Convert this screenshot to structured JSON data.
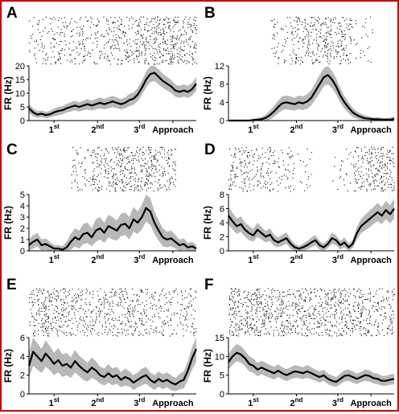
{
  "colors": {
    "frame": "#cc0000",
    "line": "#000000",
    "band": "#b8b8b8",
    "raster": "#000000"
  },
  "chart_data": [
    {
      "type": "line",
      "panel": "A",
      "ylabel": "FR (Hz)",
      "ylim": [
        0,
        20
      ],
      "yticks": [
        0,
        5,
        10,
        15,
        20
      ],
      "xtick_labels": [
        {
          "base": "1",
          "sup": "st"
        },
        {
          "base": "2",
          "sup": "nd"
        },
        {
          "base": "3",
          "sup": "rd"
        },
        {
          "base": "Approach",
          "sup": ""
        }
      ],
      "raster_density": [
        0.35,
        0.45,
        0.55,
        0.55,
        0.6,
        0.8,
        1.0,
        0.85
      ],
      "x": [
        0,
        0.025,
        0.05,
        0.075,
        0.1,
        0.125,
        0.15,
        0.175,
        0.2,
        0.225,
        0.25,
        0.275,
        0.3,
        0.325,
        0.35,
        0.375,
        0.4,
        0.425,
        0.45,
        0.475,
        0.5,
        0.525,
        0.55,
        0.575,
        0.6,
        0.625,
        0.65,
        0.675,
        0.7,
        0.725,
        0.75,
        0.775,
        0.8,
        0.825,
        0.85,
        0.875,
        0.9,
        0.925,
        0.95,
        0.975,
        1
      ],
      "series": [
        {
          "values": [
            4.5,
            3.0,
            2.2,
            2.5,
            2.0,
            2.3,
            3.0,
            3.5,
            3.8,
            4.5,
            5.0,
            5.5,
            5.0,
            5.5,
            6.0,
            5.5,
            6.0,
            6.5,
            6.0,
            6.5,
            7.0,
            6.5,
            6.0,
            6.5,
            7.5,
            8.0,
            9.5,
            12.0,
            15.0,
            17.0,
            17.5,
            16.0,
            14.5,
            13.5,
            12.5,
            11.0,
            10.5,
            11.0,
            10.5,
            11.5,
            13.5
          ],
          "band": [
            1.5,
            1.5,
            1.2,
            1.2,
            1.2,
            1.2,
            1.4,
            1.5,
            1.5,
            1.6,
            1.7,
            1.8,
            1.7,
            1.8,
            1.9,
            1.8,
            1.9,
            2.0,
            1.9,
            2.0,
            2.1,
            2.0,
            1.9,
            2.0,
            2.2,
            2.2,
            2.4,
            2.6,
            2.9,
            3.0,
            3.0,
            2.8,
            2.6,
            2.5,
            2.4,
            2.2,
            2.2,
            2.2,
            2.2,
            2.3,
            2.5
          ]
        }
      ]
    },
    {
      "type": "line",
      "panel": "B",
      "ylabel": "FR (Hz)",
      "ylim": [
        0,
        12
      ],
      "yticks": [
        0,
        4,
        8,
        12
      ],
      "xtick_labels": [
        {
          "base": "1",
          "sup": "st"
        },
        {
          "base": "2",
          "sup": "nd"
        },
        {
          "base": "3",
          "sup": "rd"
        },
        {
          "base": "Approach",
          "sup": ""
        }
      ],
      "raster_density": [
        0.05,
        0.08,
        0.35,
        0.7,
        0.9,
        0.7,
        0.15,
        0.05
      ],
      "x": [
        0,
        0.025,
        0.05,
        0.075,
        0.1,
        0.125,
        0.15,
        0.175,
        0.2,
        0.225,
        0.25,
        0.275,
        0.3,
        0.325,
        0.35,
        0.375,
        0.4,
        0.425,
        0.45,
        0.475,
        0.5,
        0.525,
        0.55,
        0.575,
        0.6,
        0.625,
        0.65,
        0.675,
        0.7,
        0.725,
        0.75,
        0.775,
        0.8,
        0.825,
        0.85,
        0.875,
        0.9,
        0.925,
        0.95,
        0.975,
        1
      ],
      "series": [
        {
          "values": [
            0,
            0,
            0,
            0,
            0,
            0,
            0.1,
            0.2,
            0.3,
            0.6,
            1.2,
            2.0,
            3.0,
            3.8,
            4.0,
            3.8,
            3.6,
            4.0,
            3.8,
            4.2,
            5.0,
            6.5,
            8.0,
            9.5,
            10.0,
            9.0,
            7.5,
            5.5,
            4.0,
            2.8,
            1.8,
            1.2,
            0.8,
            0.5,
            0.4,
            0.3,
            0.3,
            0.2,
            0.2,
            0.2,
            0.4
          ],
          "band": [
            0.2,
            0.2,
            0.2,
            0.2,
            0.2,
            0.2,
            0.3,
            0.4,
            0.5,
            0.7,
            1.0,
            1.2,
            1.4,
            1.5,
            1.5,
            1.5,
            1.4,
            1.5,
            1.5,
            1.6,
            1.7,
            1.8,
            2.0,
            2.0,
            2.0,
            1.9,
            1.8,
            1.6,
            1.4,
            1.2,
            1.0,
            0.8,
            0.7,
            0.6,
            0.5,
            0.4,
            0.4,
            0.4,
            0.4,
            0.4,
            0.5
          ]
        }
      ]
    },
    {
      "type": "line",
      "panel": "C",
      "ylabel": "FR (Hz)",
      "ylim": [
        0,
        5
      ],
      "yticks": [
        0,
        1,
        2,
        3,
        4,
        5
      ],
      "xtick_labels": [
        {
          "base": "1",
          "sup": "st"
        },
        {
          "base": "2",
          "sup": "nd"
        },
        {
          "base": "3",
          "sup": "rd"
        },
        {
          "base": "Approach",
          "sup": ""
        }
      ],
      "raster_density": [
        0.0,
        0.05,
        0.4,
        0.7,
        0.8,
        0.85,
        0.6,
        0.05
      ],
      "x": [
        0,
        0.025,
        0.05,
        0.075,
        0.1,
        0.125,
        0.15,
        0.175,
        0.2,
        0.225,
        0.25,
        0.275,
        0.3,
        0.325,
        0.35,
        0.375,
        0.4,
        0.425,
        0.45,
        0.475,
        0.5,
        0.525,
        0.55,
        0.575,
        0.6,
        0.625,
        0.65,
        0.675,
        0.7,
        0.725,
        0.75,
        0.775,
        0.8,
        0.825,
        0.85,
        0.875,
        0.9,
        0.925,
        0.95,
        0.975,
        1
      ],
      "series": [
        {
          "values": [
            0.5,
            0.8,
            1.0,
            0.5,
            0.6,
            0.4,
            0.2,
            0.2,
            0.1,
            0.3,
            0.8,
            1.2,
            1.0,
            1.5,
            1.6,
            1.2,
            1.8,
            2.0,
            1.6,
            2.2,
            2.0,
            1.8,
            2.3,
            2.4,
            2.0,
            2.8,
            2.5,
            3.0,
            3.8,
            3.5,
            2.5,
            1.8,
            1.2,
            1.0,
            1.1,
            0.8,
            0.5,
            0.6,
            0.3,
            0.4,
            0.2
          ],
          "band": [
            0.5,
            0.6,
            0.6,
            0.5,
            0.5,
            0.4,
            0.3,
            0.3,
            0.3,
            0.5,
            0.7,
            0.8,
            0.8,
            0.9,
            0.9,
            0.8,
            1.0,
            1.0,
            0.9,
            1.0,
            1.0,
            0.9,
            1.0,
            1.0,
            1.0,
            1.1,
            1.0,
            1.1,
            1.2,
            1.2,
            1.0,
            0.9,
            0.8,
            0.7,
            0.7,
            0.6,
            0.5,
            0.5,
            0.4,
            0.4,
            0.3
          ]
        }
      ]
    },
    {
      "type": "line",
      "panel": "D",
      "ylabel": "FR (Hz)",
      "ylim": [
        0,
        8
      ],
      "yticks": [
        0,
        2,
        4,
        6,
        8
      ],
      "xtick_labels": [
        {
          "base": "1",
          "sup": "st"
        },
        {
          "base": "2",
          "sup": "nd"
        },
        {
          "base": "3",
          "sup": "rd"
        },
        {
          "base": "Approach",
          "sup": ""
        }
      ],
      "raster_density": [
        0.7,
        0.45,
        0.3,
        0.1,
        0.05,
        0.1,
        0.6,
        0.85
      ],
      "x": [
        0,
        0.025,
        0.05,
        0.075,
        0.1,
        0.125,
        0.15,
        0.175,
        0.2,
        0.225,
        0.25,
        0.275,
        0.3,
        0.325,
        0.35,
        0.375,
        0.4,
        0.425,
        0.45,
        0.475,
        0.5,
        0.525,
        0.55,
        0.575,
        0.6,
        0.625,
        0.65,
        0.675,
        0.7,
        0.725,
        0.75,
        0.775,
        0.8,
        0.825,
        0.85,
        0.875,
        0.9,
        0.925,
        0.95,
        0.975,
        1
      ],
      "series": [
        {
          "values": [
            5.0,
            4.2,
            3.5,
            3.8,
            3.0,
            2.5,
            2.2,
            3.0,
            2.5,
            2.0,
            2.3,
            1.5,
            1.2,
            1.5,
            1.8,
            1.0,
            0.5,
            0.3,
            0.5,
            0.8,
            1.2,
            1.5,
            0.8,
            0.5,
            1.0,
            1.8,
            1.5,
            0.8,
            1.2,
            0.5,
            1.0,
            2.5,
            3.5,
            4.0,
            4.5,
            5.0,
            5.5,
            5.0,
            5.8,
            5.2,
            6.0
          ],
          "band": [
            1.2,
            1.2,
            1.1,
            1.1,
            1.0,
            1.0,
            0.9,
            1.0,
            0.9,
            0.8,
            0.9,
            0.8,
            0.7,
            0.8,
            0.8,
            0.7,
            0.5,
            0.4,
            0.5,
            0.6,
            0.7,
            0.7,
            0.6,
            0.5,
            0.6,
            0.8,
            0.7,
            0.6,
            0.7,
            0.5,
            0.6,
            0.9,
            1.0,
            1.1,
            1.2,
            1.2,
            1.3,
            1.2,
            1.3,
            1.3,
            1.4
          ]
        }
      ]
    },
    {
      "type": "line",
      "panel": "E",
      "ylabel": "FR (Hz)",
      "ylim": [
        0,
        6
      ],
      "yticks": [
        0,
        2,
        4,
        6
      ],
      "xtick_labels": [
        {
          "base": "1",
          "sup": "st"
        },
        {
          "base": "2",
          "sup": "nd"
        },
        {
          "base": "3",
          "sup": "rd"
        },
        {
          "base": "Approach",
          "sup": ""
        }
      ],
      "raster_density": [
        0.8,
        0.75,
        0.7,
        0.65,
        0.6,
        0.6,
        0.55,
        0.5
      ],
      "x": [
        0,
        0.025,
        0.05,
        0.075,
        0.1,
        0.125,
        0.15,
        0.175,
        0.2,
        0.225,
        0.25,
        0.275,
        0.3,
        0.325,
        0.35,
        0.375,
        0.4,
        0.425,
        0.45,
        0.475,
        0.5,
        0.525,
        0.55,
        0.575,
        0.6,
        0.625,
        0.65,
        0.675,
        0.7,
        0.725,
        0.75,
        0.775,
        0.8,
        0.825,
        0.85,
        0.875,
        0.9,
        0.925,
        0.95,
        0.975,
        1
      ],
      "series": [
        {
          "values": [
            3.0,
            4.5,
            4.0,
            3.5,
            4.3,
            3.8,
            3.2,
            3.6,
            3.0,
            3.2,
            2.8,
            3.5,
            3.0,
            2.6,
            2.3,
            2.8,
            2.5,
            2.0,
            1.8,
            2.2,
            1.8,
            2.0,
            1.5,
            1.8,
            1.6,
            1.2,
            1.5,
            1.8,
            2.0,
            1.5,
            1.2,
            1.6,
            1.3,
            1.5,
            1.2,
            1.0,
            1.3,
            1.5,
            2.5,
            3.8,
            4.8
          ],
          "band": [
            1.3,
            1.5,
            1.4,
            1.3,
            1.4,
            1.3,
            1.2,
            1.3,
            1.2,
            1.2,
            1.1,
            1.2,
            1.1,
            1.1,
            1.0,
            1.1,
            1.0,
            0.9,
            0.9,
            1.0,
            0.9,
            0.9,
            0.8,
            0.9,
            0.8,
            0.8,
            0.8,
            0.9,
            0.9,
            0.8,
            0.8,
            0.8,
            0.8,
            0.8,
            0.8,
            0.7,
            0.8,
            0.9,
            1.0,
            1.2,
            1.4
          ]
        }
      ]
    },
    {
      "type": "line",
      "panel": "F",
      "ylabel": "FR (Hz)",
      "ylim": [
        0,
        15
      ],
      "yticks": [
        0,
        5,
        10,
        15
      ],
      "xtick_labels": [
        {
          "base": "1",
          "sup": "st"
        },
        {
          "base": "2",
          "sup": "nd"
        },
        {
          "base": "3",
          "sup": "rd"
        },
        {
          "base": "Approach",
          "sup": ""
        }
      ],
      "raster_density": [
        1.0,
        0.95,
        0.9,
        0.85,
        0.85,
        0.8,
        0.75,
        0.7
      ],
      "x": [
        0,
        0.025,
        0.05,
        0.075,
        0.1,
        0.125,
        0.15,
        0.175,
        0.2,
        0.225,
        0.25,
        0.275,
        0.3,
        0.325,
        0.35,
        0.375,
        0.4,
        0.425,
        0.45,
        0.475,
        0.5,
        0.525,
        0.55,
        0.575,
        0.6,
        0.625,
        0.65,
        0.675,
        0.7,
        0.725,
        0.75,
        0.775,
        0.8,
        0.825,
        0.85,
        0.875,
        0.9,
        0.925,
        0.95,
        0.975,
        1
      ],
      "series": [
        {
          "values": [
            8.5,
            10.0,
            11.0,
            10.5,
            9.5,
            8.0,
            7.5,
            6.5,
            7.0,
            6.5,
            6.0,
            5.5,
            6.2,
            5.5,
            5.0,
            5.5,
            6.0,
            5.8,
            5.5,
            6.0,
            5.5,
            5.0,
            4.5,
            5.0,
            4.0,
            3.5,
            3.2,
            4.0,
            4.8,
            5.0,
            4.5,
            4.0,
            4.5,
            5.0,
            4.8,
            4.2,
            4.0,
            3.5,
            3.5,
            3.8,
            4.0
          ],
          "band": [
            2.0,
            2.2,
            2.3,
            2.2,
            2.1,
            2.0,
            1.9,
            1.8,
            1.8,
            1.8,
            1.7,
            1.7,
            1.7,
            1.6,
            1.6,
            1.6,
            1.7,
            1.6,
            1.6,
            1.7,
            1.6,
            1.5,
            1.5,
            1.5,
            1.4,
            1.4,
            1.3,
            1.4,
            1.5,
            1.5,
            1.5,
            1.4,
            1.4,
            1.5,
            1.5,
            1.4,
            1.4,
            1.3,
            1.3,
            1.4,
            1.4
          ]
        }
      ]
    }
  ]
}
